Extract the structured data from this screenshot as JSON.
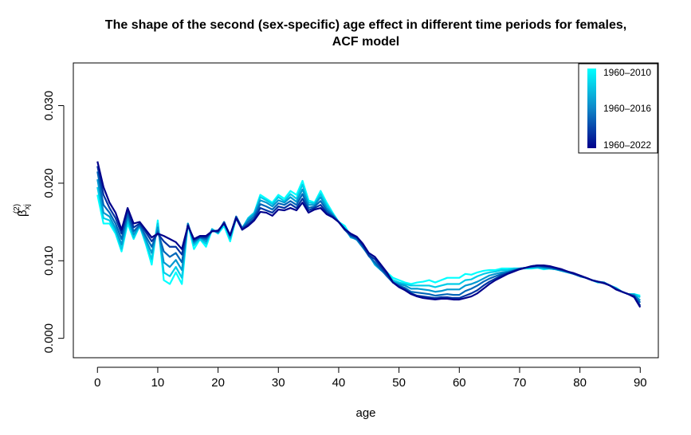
{
  "chart_data": {
    "type": "line",
    "title_line1": "The shape of the second (sex-specific) age effect in different time periods for females,",
    "title_line2": "ACF model",
    "xlabel": "age",
    "ylabel_base": "β",
    "ylabel_sub": "xj",
    "ylabel_sup": "(2)",
    "xlim": [
      -4,
      93
    ],
    "ylim": [
      -0.0025,
      0.0355
    ],
    "x_ticks": [
      0,
      10,
      20,
      30,
      40,
      50,
      60,
      70,
      80,
      90
    ],
    "y_ticks": [
      0.0,
      0.01,
      0.02,
      0.03
    ],
    "y_tick_labels": [
      "0.000",
      "0.010",
      "0.020",
      "0.030"
    ],
    "grid": false,
    "legend_position": "top-right",
    "legend": [
      {
        "label": "1960–2010",
        "color": "#00FFFF"
      },
      {
        "label": "1960–2016",
        "color": "#0E86C8"
      },
      {
        "label": "1960–2022",
        "color": "#00008B"
      }
    ],
    "color_first": "#00FFFF",
    "color_last": "#00008B",
    "ages": [
      0,
      1,
      2,
      3,
      4,
      5,
      6,
      7,
      8,
      9,
      10,
      11,
      12,
      13,
      14,
      15,
      16,
      17,
      18,
      19,
      20,
      21,
      22,
      23,
      24,
      25,
      26,
      27,
      28,
      29,
      30,
      31,
      32,
      33,
      34,
      35,
      36,
      37,
      38,
      39,
      40,
      41,
      42,
      43,
      44,
      45,
      46,
      47,
      48,
      49,
      50,
      51,
      52,
      53,
      54,
      55,
      56,
      57,
      58,
      59,
      60,
      61,
      62,
      63,
      64,
      65,
      66,
      67,
      68,
      69,
      70,
      71,
      72,
      73,
      74,
      75,
      76,
      77,
      78,
      79,
      80,
      81,
      82,
      83,
      84,
      85,
      86,
      87,
      88,
      89,
      90
    ],
    "series": [
      {
        "values": [
          0.0185,
          0.0148,
          0.0148,
          0.0135,
          0.0112,
          0.0148,
          0.0128,
          0.0145,
          0.0122,
          0.0095,
          0.0152,
          0.0075,
          0.007,
          0.0085,
          0.007,
          0.0148,
          0.0115,
          0.0128,
          0.0118,
          0.014,
          0.0135,
          0.0145,
          0.0125,
          0.0155,
          0.014,
          0.0155,
          0.0162,
          0.0185,
          0.018,
          0.0175,
          0.0185,
          0.018,
          0.019,
          0.0185,
          0.0203,
          0.0178,
          0.0175,
          0.019,
          0.0175,
          0.0162,
          0.015,
          0.0145,
          0.0132,
          0.013,
          0.012,
          0.011,
          0.0095,
          0.0088,
          0.0085,
          0.0078,
          0.0075,
          0.0072,
          0.007,
          0.0072,
          0.0073,
          0.0075,
          0.0072,
          0.0075,
          0.0078,
          0.0078,
          0.0078,
          0.0083,
          0.0082,
          0.0085,
          0.0087,
          0.0088,
          0.0088,
          0.009,
          0.009,
          0.009,
          0.009,
          0.009,
          0.009,
          0.0091,
          0.0089,
          0.009,
          0.0089,
          0.0087,
          0.0085,
          0.0083,
          0.008,
          0.0078,
          0.0075,
          0.0072,
          0.0072,
          0.0068,
          0.0065,
          0.006,
          0.0057,
          0.0057,
          0.0055
        ]
      },
      {
        "values": [
          0.0195,
          0.0155,
          0.0152,
          0.0138,
          0.0115,
          0.0152,
          0.013,
          0.0145,
          0.0124,
          0.0102,
          0.0148,
          0.0085,
          0.008,
          0.0092,
          0.0078,
          0.0148,
          0.012,
          0.0128,
          0.0122,
          0.0141,
          0.0136,
          0.0148,
          0.0128,
          0.0155,
          0.0142,
          0.0155,
          0.0162,
          0.0182,
          0.0178,
          0.0173,
          0.0182,
          0.0177,
          0.0186,
          0.018,
          0.0198,
          0.0175,
          0.0174,
          0.0186,
          0.0172,
          0.016,
          0.015,
          0.0142,
          0.013,
          0.0128,
          0.0118,
          0.0108,
          0.0095,
          0.0088,
          0.0083,
          0.0075,
          0.0072,
          0.007,
          0.0068,
          0.0068,
          0.0068,
          0.0068,
          0.0066,
          0.0068,
          0.007,
          0.007,
          0.007,
          0.0075,
          0.0076,
          0.008,
          0.0083,
          0.0085,
          0.0086,
          0.0088,
          0.0088,
          0.009,
          0.009,
          0.0091,
          0.0091,
          0.0091,
          0.009,
          0.009,
          0.0089,
          0.0087,
          0.0085,
          0.0083,
          0.008,
          0.0078,
          0.0075,
          0.0072,
          0.0072,
          0.0068,
          0.0065,
          0.006,
          0.0057,
          0.0057,
          0.0053
        ]
      },
      {
        "values": [
          0.0205,
          0.0162,
          0.0157,
          0.0142,
          0.0121,
          0.0156,
          0.0134,
          0.0145,
          0.0128,
          0.011,
          0.0143,
          0.0098,
          0.0092,
          0.0101,
          0.0088,
          0.0148,
          0.0123,
          0.013,
          0.0125,
          0.014,
          0.0136,
          0.015,
          0.013,
          0.0157,
          0.0142,
          0.0153,
          0.016,
          0.0178,
          0.0175,
          0.017,
          0.0178,
          0.0175,
          0.0182,
          0.0176,
          0.0192,
          0.0172,
          0.0172,
          0.0182,
          0.0168,
          0.016,
          0.015,
          0.0141,
          0.0131,
          0.0127,
          0.0117,
          0.0107,
          0.0096,
          0.0088,
          0.0081,
          0.0073,
          0.007,
          0.0068,
          0.0064,
          0.0064,
          0.0063,
          0.0062,
          0.006,
          0.0061,
          0.0063,
          0.0063,
          0.0063,
          0.0068,
          0.007,
          0.0073,
          0.0077,
          0.0081,
          0.0083,
          0.0085,
          0.0086,
          0.0088,
          0.009,
          0.0091,
          0.0092,
          0.0092,
          0.0091,
          0.009,
          0.0089,
          0.0087,
          0.0085,
          0.0083,
          0.008,
          0.0078,
          0.0075,
          0.0073,
          0.0072,
          0.0068,
          0.0064,
          0.006,
          0.0057,
          0.0056,
          0.0049
        ]
      },
      {
        "values": [
          0.0215,
          0.0172,
          0.0162,
          0.0148,
          0.0128,
          0.016,
          0.0138,
          0.0146,
          0.0132,
          0.0118,
          0.0138,
          0.0112,
          0.0105,
          0.011,
          0.0098,
          0.0147,
          0.0125,
          0.013,
          0.0128,
          0.0139,
          0.0137,
          0.015,
          0.0132,
          0.0157,
          0.0142,
          0.015,
          0.0157,
          0.0173,
          0.017,
          0.0166,
          0.0174,
          0.0172,
          0.0177,
          0.0172,
          0.0186,
          0.0168,
          0.017,
          0.0177,
          0.0165,
          0.0158,
          0.015,
          0.014,
          0.0132,
          0.0128,
          0.0118,
          0.0106,
          0.0098,
          0.0089,
          0.008,
          0.0072,
          0.0068,
          0.0065,
          0.006,
          0.0059,
          0.0058,
          0.0057,
          0.0055,
          0.0056,
          0.0057,
          0.0056,
          0.0056,
          0.0061,
          0.0064,
          0.0068,
          0.0073,
          0.0077,
          0.008,
          0.0083,
          0.0085,
          0.0087,
          0.009,
          0.0091,
          0.0092,
          0.0093,
          0.0092,
          0.0091,
          0.009,
          0.0088,
          0.0086,
          0.0083,
          0.008,
          0.0078,
          0.0075,
          0.0073,
          0.0072,
          0.0068,
          0.0064,
          0.006,
          0.0057,
          0.0055,
          0.0046
        ]
      },
      {
        "values": [
          0.0222,
          0.0185,
          0.0168,
          0.0155,
          0.0135,
          0.0165,
          0.0143,
          0.0148,
          0.0137,
          0.0125,
          0.0135,
          0.0125,
          0.0118,
          0.0118,
          0.0108,
          0.0146,
          0.0127,
          0.0131,
          0.013,
          0.0138,
          0.0138,
          0.0149,
          0.0133,
          0.0156,
          0.0141,
          0.0147,
          0.0154,
          0.0168,
          0.0165,
          0.0162,
          0.017,
          0.0168,
          0.0173,
          0.0168,
          0.018,
          0.0165,
          0.0168,
          0.0172,
          0.0162,
          0.0157,
          0.015,
          0.014,
          0.0133,
          0.013,
          0.012,
          0.0107,
          0.0102,
          0.0092,
          0.0082,
          0.0072,
          0.0067,
          0.0063,
          0.0058,
          0.0055,
          0.0054,
          0.0053,
          0.0052,
          0.0053,
          0.0053,
          0.0052,
          0.0052,
          0.0055,
          0.0058,
          0.0062,
          0.0068,
          0.0073,
          0.0077,
          0.0081,
          0.0084,
          0.0087,
          0.0089,
          0.0091,
          0.0093,
          0.0094,
          0.0093,
          0.0092,
          0.009,
          0.0088,
          0.0086,
          0.0083,
          0.0081,
          0.0078,
          0.0075,
          0.0073,
          0.0071,
          0.0068,
          0.0063,
          0.006,
          0.0057,
          0.0054,
          0.0042
        ]
      },
      {
        "values": [
          0.0228,
          0.0195,
          0.0175,
          0.0162,
          0.014,
          0.0168,
          0.0148,
          0.015,
          0.014,
          0.013,
          0.0135,
          0.0132,
          0.0128,
          0.0124,
          0.0115,
          0.0145,
          0.0128,
          0.0132,
          0.0132,
          0.0138,
          0.0139,
          0.0148,
          0.0133,
          0.0155,
          0.014,
          0.0145,
          0.0152,
          0.0163,
          0.0162,
          0.0158,
          0.0166,
          0.0165,
          0.0168,
          0.0165,
          0.0175,
          0.0162,
          0.0166,
          0.0168,
          0.016,
          0.0156,
          0.015,
          0.0141,
          0.0135,
          0.0131,
          0.0122,
          0.011,
          0.0105,
          0.0095,
          0.0085,
          0.0072,
          0.0066,
          0.0062,
          0.0057,
          0.0054,
          0.0052,
          0.0051,
          0.005,
          0.0051,
          0.0051,
          0.005,
          0.005,
          0.0052,
          0.0054,
          0.0058,
          0.0064,
          0.007,
          0.0075,
          0.0079,
          0.0083,
          0.0086,
          0.0089,
          0.0091,
          0.0093,
          0.0094,
          0.0094,
          0.0093,
          0.0091,
          0.0089,
          0.0086,
          0.0084,
          0.0081,
          0.0078,
          0.0075,
          0.0073,
          0.0071,
          0.0068,
          0.0063,
          0.006,
          0.0057,
          0.0053,
          0.004
        ]
      }
    ]
  }
}
